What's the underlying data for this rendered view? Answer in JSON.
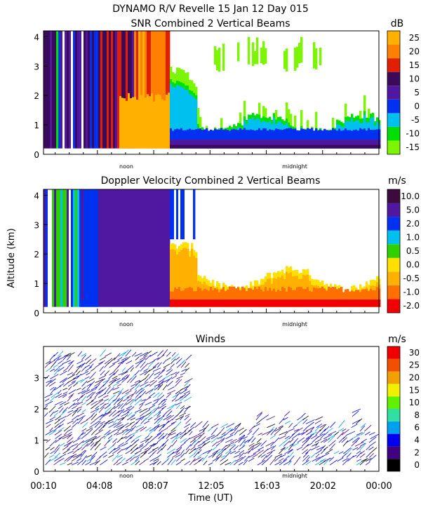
{
  "header": {
    "title_line1": "DYNAMO R/V Revelle  15 Jan 12 Day 015"
  },
  "y_axis_label": "Altitude (km)",
  "x_axis_label": "Time (UT)",
  "time_ticks": [
    "00:10",
    "04:08",
    "08:07",
    "12:05",
    "16:03",
    "20:02",
    "00:00"
  ],
  "markers": {
    "noon": "noon",
    "midnight": "midnight"
  },
  "colors": {
    "snr": [
      "#7cf500",
      "#00e000",
      "#00c0f0",
      "#0030f0",
      "#5018a0",
      "#3c0a5a",
      "#e02000",
      "#ff8000",
      "#ffb000"
    ],
    "doppler": [
      "#f00000",
      "#ff7000",
      "#ffb000",
      "#ffe000",
      "#30d000",
      "#00c0f0",
      "#0030f0",
      "#5018a0",
      "#3c0a3c"
    ],
    "winds": [
      "#000000",
      "#400080",
      "#0000f0",
      "#00a0f0",
      "#30e0a0",
      "#60f000",
      "#f0f000",
      "#f0a000",
      "#f05000",
      "#f00000"
    ]
  },
  "chart_data": [
    {
      "type": "heatmap",
      "title": "SNR Combined 2 Vertical Beams",
      "units": "dB",
      "ylabel": "",
      "ylim": [
        0,
        4.2
      ],
      "yticks": [
        "0",
        "1",
        "2",
        "3",
        "4"
      ],
      "colorbar_labels": [
        "-15",
        "-10",
        "-5",
        "0",
        "5",
        "10",
        "15",
        "20",
        "25"
      ],
      "colorbar_values": [
        -15,
        -10,
        -5,
        0,
        5,
        10,
        15,
        20,
        25
      ],
      "x_range_hours": [
        0.17,
        24.0
      ],
      "regimes": [
        {
          "from_hour": 0.17,
          "to_hour": 2.4,
          "top_km": 4.2,
          "description": "purple/blue columns with rain streaks"
        },
        {
          "from_hour": 2.4,
          "to_hour": 9.0,
          "top_km": 4.2,
          "description": "strong returns, orange 15-25 dB in rain"
        },
        {
          "from_hour": 9.0,
          "to_hour": 24.0,
          "top_km": 1.3,
          "description": "boundary layer returns, blue/purple below 1 km"
        }
      ]
    },
    {
      "type": "heatmap",
      "title": "Doppler Velocity Combined 2 Vertical Beams",
      "units": "m/s",
      "ylabel": "Altitude (km)",
      "ylim": [
        0,
        4.2
      ],
      "yticks": [
        "0",
        "1",
        "2",
        "3",
        "4"
      ],
      "colorbar_labels": [
        "-2.0",
        "-1.0",
        "-0.5",
        "0.0",
        "0.5",
        "1.0",
        "2.0",
        "5.0",
        "10.0"
      ],
      "colorbar_values": [
        -2.0,
        -1.0,
        -0.5,
        0.0,
        0.5,
        1.0,
        2.0,
        5.0,
        10.0
      ],
      "x_range_hours": [
        0.17,
        24.0
      ],
      "regimes": [
        {
          "from_hour": 0.17,
          "to_hour": 2.6,
          "top_km": 4.2,
          "description": "mixed blue/green/purple"
        },
        {
          "from_hour": 2.6,
          "to_hour": 9.0,
          "top_km": 4.2,
          "description": "dark purple, 5-10 m/s fall speeds"
        },
        {
          "from_hour": 9.0,
          "to_hour": 24.0,
          "top_km": 1.6,
          "description": "red/orange -2 to -0.5 m/s near surface"
        }
      ]
    },
    {
      "type": "scatter",
      "title": "Winds",
      "units": "m/s",
      "ylabel": "",
      "xlabel": "Time (UT)",
      "ylim": [
        0,
        4.0
      ],
      "yticks": [
        "0",
        "1",
        "2",
        "3"
      ],
      "colorbar_labels": [
        "0",
        "2",
        "4",
        "6",
        "8",
        "10",
        "15",
        "20",
        "25",
        "30"
      ],
      "colorbar_values": [
        0,
        2,
        4,
        6,
        8,
        10,
        15,
        20,
        25,
        30
      ],
      "x_range_hours": [
        0.17,
        24.0
      ],
      "description": "wind barbs, mostly 2-6 m/s, up to ~10 m/s near 2-4 km before 12:00 UT"
    }
  ]
}
